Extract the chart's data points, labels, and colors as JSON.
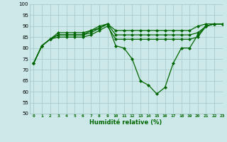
{
  "xlabel": "Humidité relative (%)",
  "background_color": "#cce8e8",
  "grid_color": "#aacccc",
  "line_color": "#006600",
  "ylim": [
    50,
    100
  ],
  "xlim": [
    -0.5,
    23
  ],
  "yticks": [
    50,
    55,
    60,
    65,
    70,
    75,
    80,
    85,
    90,
    95,
    100
  ],
  "xticks": [
    0,
    1,
    2,
    3,
    4,
    5,
    6,
    7,
    8,
    9,
    10,
    11,
    12,
    13,
    14,
    15,
    16,
    17,
    18,
    19,
    20,
    21,
    22,
    23
  ],
  "series": [
    [
      73,
      81,
      84,
      86,
      86,
      86,
      86,
      88,
      89,
      91,
      81,
      80,
      75,
      65,
      63,
      59,
      62,
      73,
      80,
      80,
      86,
      90,
      91,
      91
    ],
    [
      73,
      81,
      84,
      87,
      87,
      87,
      87,
      88,
      90,
      91,
      88,
      88,
      88,
      88,
      88,
      88,
      88,
      88,
      88,
      88,
      90,
      91,
      91,
      91
    ],
    [
      73,
      81,
      84,
      86,
      86,
      86,
      86,
      87,
      89,
      91,
      86,
      86,
      86,
      86,
      86,
      86,
      86,
      86,
      86,
      86,
      87,
      90,
      91,
      91
    ],
    [
      73,
      81,
      84,
      85,
      85,
      85,
      85,
      86,
      88,
      90,
      84,
      84,
      84,
      84,
      84,
      84,
      84,
      84,
      84,
      84,
      85,
      90,
      91,
      91
    ]
  ],
  "marker": "D",
  "markersize": 2.0,
  "linewidth": 0.9
}
